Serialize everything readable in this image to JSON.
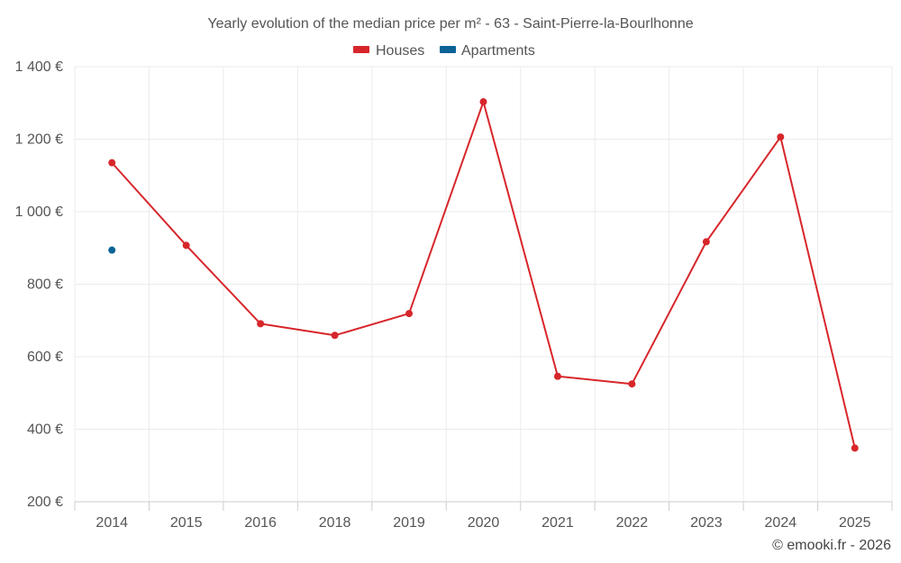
{
  "chart_data": {
    "type": "line",
    "title": "Yearly evolution of the median price per m² - 63 - Saint-Pierre-la-Bourlhonne",
    "categories": [
      "2014",
      "2015",
      "2016",
      "2018",
      "2019",
      "2020",
      "2021",
      "2022",
      "2023",
      "2024",
      "2025"
    ],
    "ylim": [
      200,
      1400
    ],
    "yticks": [
      200,
      400,
      600,
      800,
      1000,
      1200,
      1400
    ],
    "ytick_labels": [
      "200 €",
      "400 €",
      "600 €",
      "800 €",
      "1 000 €",
      "1 200 €",
      "1 400 €"
    ],
    "grid": true,
    "legend_position": "top-center",
    "series": [
      {
        "name": "Houses",
        "color": "#d7262b",
        "values": [
          1135,
          907,
          691,
          659,
          719,
          1303,
          546,
          525,
          917,
          1206,
          348
        ]
      },
      {
        "name": "Apartments",
        "color": "#0b6396",
        "values": [
          894,
          null,
          null,
          null,
          null,
          null,
          null,
          null,
          null,
          null,
          null
        ]
      }
    ]
  },
  "credit": "© emooki.fr - 2026"
}
